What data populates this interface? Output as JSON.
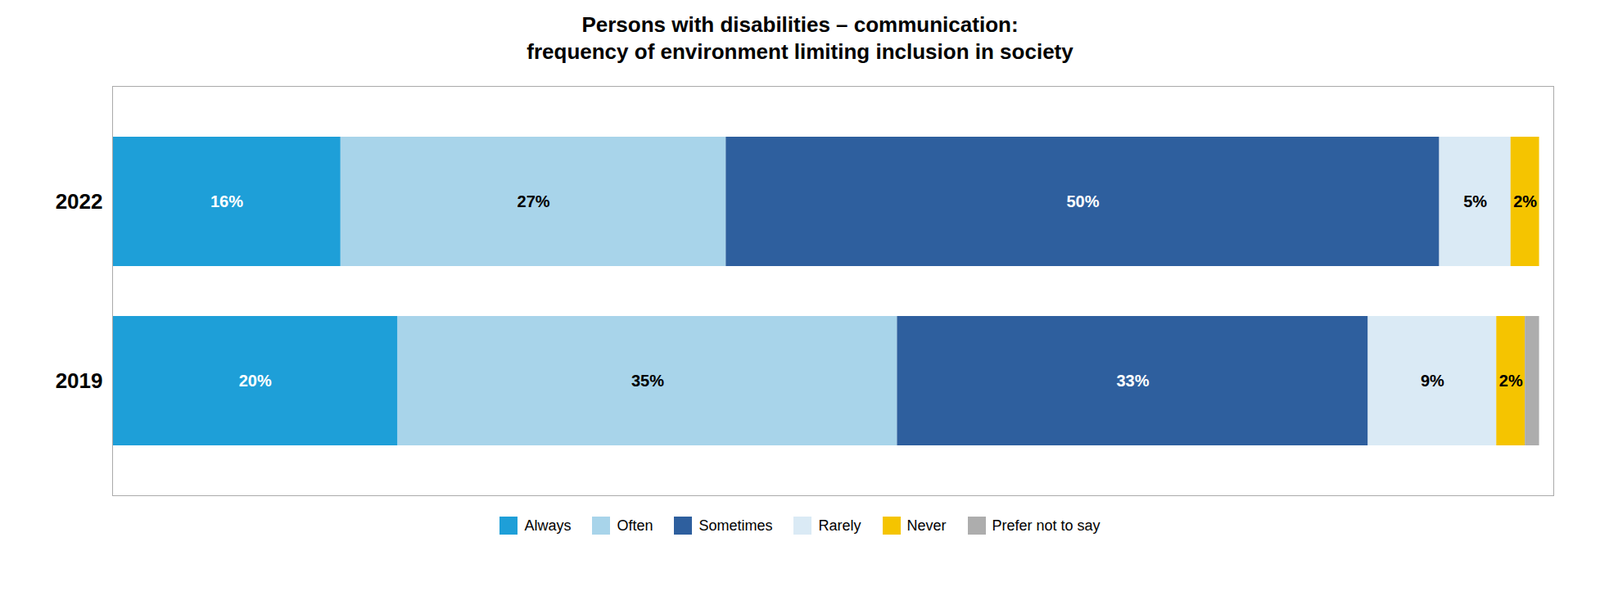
{
  "chart_data": {
    "type": "bar",
    "orientation": "horizontal",
    "stacked": true,
    "title": "Persons with disabilities – communication:\nfrequency of environment limiting inclusion in society",
    "categories": [
      "2022",
      "2019"
    ],
    "series": [
      {
        "name": "Always",
        "color": "#1E9FD8",
        "values": [
          16,
          20
        ],
        "value_labels": [
          "16%",
          "20%"
        ]
      },
      {
        "name": "Often",
        "color": "#A8D4EA",
        "values": [
          27,
          35
        ],
        "value_labels": [
          "27%",
          "35%"
        ]
      },
      {
        "name": "Sometimes",
        "color": "#2E5F9E",
        "values": [
          50,
          33
        ],
        "value_labels": [
          "50%",
          "33%"
        ]
      },
      {
        "name": "Rarely",
        "color": "#DAEAF5",
        "values": [
          5,
          9
        ],
        "value_labels": [
          "5%",
          "9%"
        ]
      },
      {
        "name": "Never",
        "color": "#F5C400",
        "values": [
          2,
          2
        ],
        "value_labels": [
          "2%",
          "2%"
        ]
      },
      {
        "name": "Prefer not to say",
        "color": "#ADADAD",
        "values": [
          0,
          1
        ],
        "value_labels": [
          null,
          null
        ]
      }
    ],
    "xlim": [
      0,
      101
    ],
    "data_labels": true,
    "tick_labels": "y",
    "grid": false,
    "legend": "bottom"
  }
}
